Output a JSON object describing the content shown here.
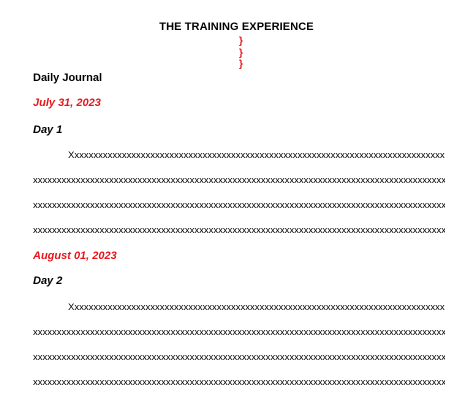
{
  "document": {
    "title": "THE TRAINING EXPERIENCE",
    "braces": [
      "}",
      "}",
      "}"
    ],
    "section_heading": "Daily Journal",
    "entries": [
      {
        "date": "July 31, 2023",
        "day": "Day 1",
        "lines": [
          "Xxxxxxxxxxxxxxxxxxxxxxxxxxxxxxxxxxxxxxxxxxxxxxxxxxxxxxxxxxxxxxxxxxxxxxxxxxxxxxxx",
          "xxxxxxxxxxxxxxxxxxxxxxxxxxxxxxxxxxxxxxxxxxxxxxxxxxxxxxxxxxxxxxxxxxxxxxxxxxxxxxxxxxxxxxxxx",
          "xxxxxxxxxxxxxxxxxxxxxxxxxxxxxxxxxxxxxxxxxxxxxxxxxxxxxxxxxxxxxxxxxxxxxxxxxxxxxxxxxxxxxxxxx",
          "xxxxxxxxxxxxxxxxxxxxxxxxxxxxxxxxxxxxxxxxxxxxxxxxxxxxxxxxxxxxxxxxxxxxxxxxxxxxxxxxxxxxxxx."
        ]
      },
      {
        "date": "August 01, 2023",
        "day": "Day 2",
        "lines": [
          "Xxxxxxxxxxxxxxxxxxxxxxxxxxxxxxxxxxxxxxxxxxxxxxxxxxxxxxxxxxxxxxxxxxxxxxxxxxxxxxxx",
          "xxxxxxxxxxxxxxxxxxxxxxxxxxxxxxxxxxxxxxxxxxxxxxxxxxxxxxxxxxxxxxxxxxxxxxxxxxxxxxxxxxxxxxxxx",
          "xxxxxxxxxxxxxxxxxxxxxxxxxxxxxxxxxxxxxxxxxxxxxxxxxxxxxxxxxxxxxxxxxxxxxxxxxxxxxxxxxxxxxxxxx",
          "xxxxxxxxxxxxxxxxxxxxxxxxxxxxxxxxxxxxxxxxxxxxxxxxxxxxxxxxxxxxxxxxxxxxxxxxxxxxxxxxxxxxxxx."
        ]
      }
    ],
    "colors": {
      "accent_red": "#e8141b",
      "text": "#000000"
    }
  }
}
